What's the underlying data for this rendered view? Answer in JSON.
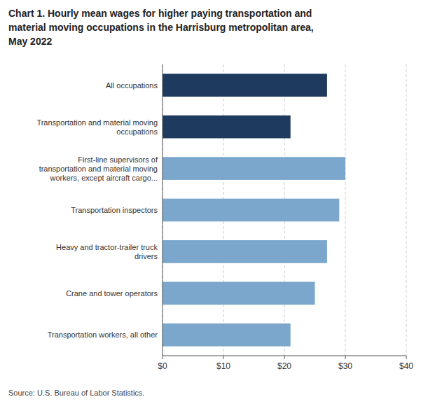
{
  "chart_data": {
    "type": "bar",
    "orientation": "horizontal",
    "title": "Chart 1. Hourly mean wages for higher paying transportation and\nmaterial moving occupations in the Harrisburg metropolitan area,\nMay 2022",
    "categories": [
      "Transportation workers, all other",
      "Crane and tower operators",
      "Heavy and tractor-trailer truck\ndrivers",
      "Transportation inspectors",
      "First-line supervisors of\ntransportation and material moving\nworkers, except aircraft cargo...",
      "Transportation and material moving\noccupations",
      "All occupations"
    ],
    "values": [
      21.0,
      25.0,
      27.0,
      29.0,
      30.0,
      21.0,
      27.0
    ],
    "colors": [
      "#7ba7cc",
      "#7ba7cc",
      "#7ba7cc",
      "#7ba7cc",
      "#7ba7cc",
      "#1e3a5f",
      "#1e3a5f"
    ],
    "xlim": [
      0,
      40
    ],
    "xticks": [
      {
        "value": 0,
        "label": "$0"
      },
      {
        "value": 10,
        "label": "$10"
      },
      {
        "value": 20,
        "label": "$20"
      },
      {
        "value": 30,
        "label": "$30"
      },
      {
        "value": 40,
        "label": "$40"
      }
    ],
    "grid": true,
    "source": "Source: U.S. Bureau of Labor Statistics."
  }
}
